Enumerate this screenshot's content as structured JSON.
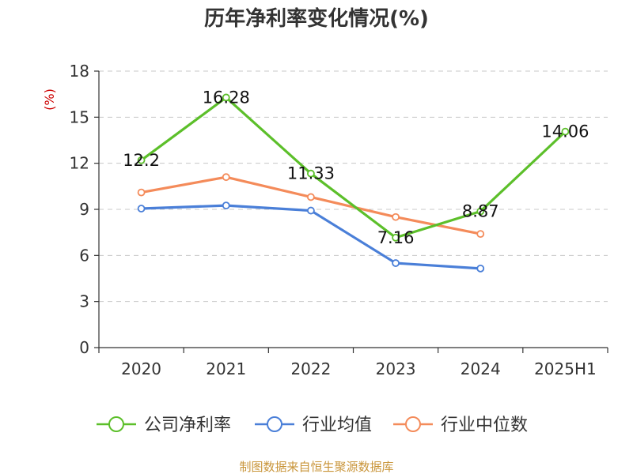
{
  "chart_data": {
    "type": "line",
    "title": "历年净利率变化情况(%)",
    "ylabel": "(%)",
    "xlabel": "",
    "categories": [
      "2020",
      "2021",
      "2022",
      "2023",
      "2024",
      "2025H1"
    ],
    "ylim": [
      0,
      18
    ],
    "yticks": [
      "0",
      "3",
      "6",
      "9",
      "12",
      "15",
      "18"
    ],
    "grid": true,
    "legend_position": "bottom",
    "series": [
      {
        "name": "公司净利率",
        "color": "#5cbf2a",
        "values": [
          12.2,
          16.28,
          11.33,
          7.16,
          8.87,
          14.06
        ],
        "labels": [
          "12.2",
          "16.28",
          "11.33",
          "7.16",
          "8.87",
          "14.06"
        ]
      },
      {
        "name": "行业均值",
        "color": "#4a7fd8",
        "values": [
          9.05,
          9.25,
          8.92,
          5.5,
          5.15,
          null
        ]
      },
      {
        "name": "行业中位数",
        "color": "#f48b5a",
        "values": [
          10.1,
          11.1,
          9.8,
          8.5,
          7.4,
          null
        ]
      }
    ]
  },
  "footer": {
    "source": "制图数据来自恒生聚源数据库"
  }
}
